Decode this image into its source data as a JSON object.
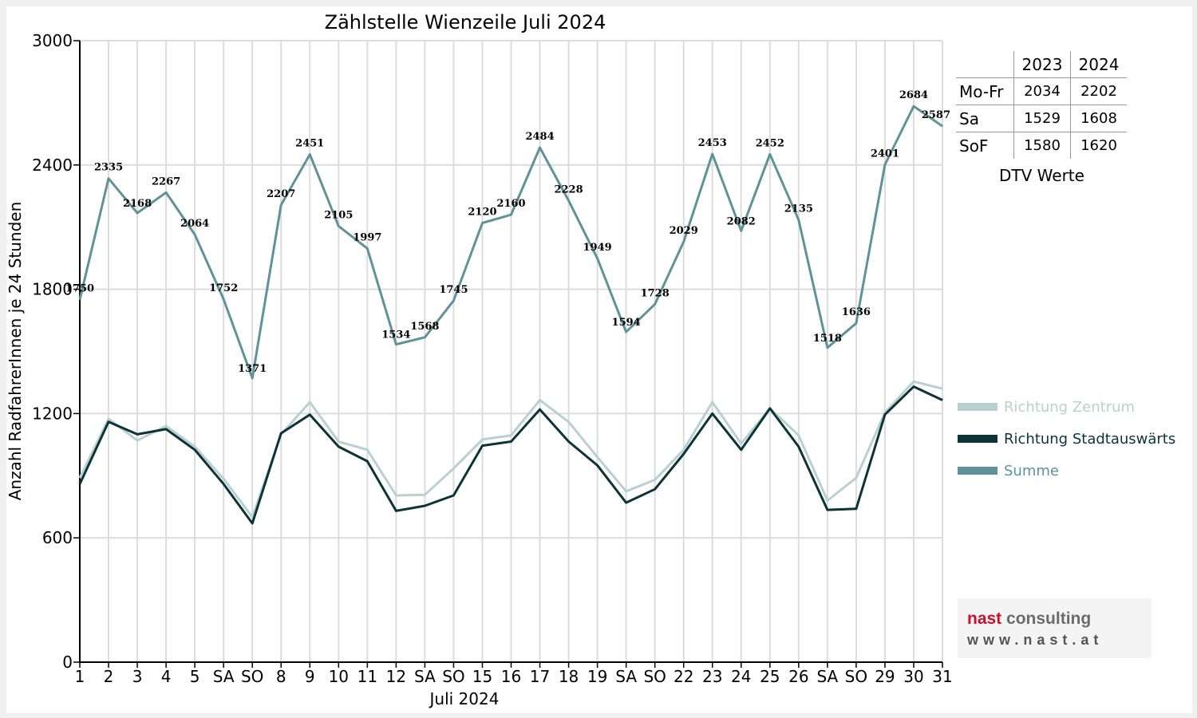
{
  "chart_data": {
    "type": "line",
    "title": "Zählstelle Wienzeile Juli 2024",
    "xlabel": "Juli 2024",
    "ylabel": "Anzahl RadfahrerInnen je 24 Stunden",
    "ylim": [
      0,
      3000
    ],
    "yticks": [
      0,
      600,
      1200,
      1800,
      2400,
      3000
    ],
    "grid": true,
    "legend_position": "right",
    "categories": [
      "1",
      "2",
      "3",
      "4",
      "5",
      "SA",
      "SO",
      "8",
      "9",
      "10",
      "11",
      "12",
      "SA",
      "SO",
      "15",
      "16",
      "17",
      "18",
      "19",
      "SA",
      "SO",
      "22",
      "23",
      "24",
      "25",
      "26",
      "SA",
      "SO",
      "29",
      "30",
      "31"
    ],
    "weekend_label_color": "#ff0000",
    "series": [
      {
        "name": "Richtung Zentrum",
        "color": "#b8d0d4",
        "values": [
          890,
          1175,
          1070,
          1140,
          1040,
          885,
          700,
          1100,
          1255,
          1065,
          1025,
          805,
          808,
          935,
          1075,
          1095,
          1265,
          1160,
          990,
          825,
          880,
          1025,
          1255,
          1055,
          1225,
          1095,
          780,
          890,
          1205,
          1355,
          1320
        ]
      },
      {
        "name": "Richtung Stadtauswärts",
        "color": "#0c3338",
        "values": [
          860,
          1160,
          1100,
          1125,
          1025,
          860,
          670,
          1105,
          1195,
          1040,
          970,
          730,
          755,
          805,
          1045,
          1065,
          1220,
          1065,
          950,
          770,
          835,
          1005,
          1200,
          1025,
          1225,
          1040,
          735,
          740,
          1195,
          1330,
          1265
        ]
      },
      {
        "name": "Summe",
        "color": "#5f9299",
        "values": [
          1750,
          2335,
          2168,
          2267,
          2064,
          1752,
          1371,
          2207,
          2451,
          2105,
          1997,
          1534,
          1568,
          1745,
          2120,
          2160,
          2484,
          2228,
          1949,
          1594,
          1728,
          2029,
          2453,
          2082,
          2452,
          2135,
          1518,
          1636,
          2401,
          2684,
          2587
        ],
        "labels": [
          "1750",
          "2335",
          "2168",
          "2267",
          "2064",
          "1752",
          "1371",
          "2207",
          "2451",
          "2105",
          "1997",
          "1534",
          "1568",
          "1745",
          "2120",
          "2160",
          "2484",
          "2228",
          "1949",
          "1594",
          "1728",
          "2029",
          "2453",
          "2082",
          "2452",
          "2135",
          "1518",
          "1636",
          "2401",
          "2684",
          "2587"
        ]
      }
    ]
  },
  "dtv_table": {
    "columns": [
      "",
      "2023",
      "2024"
    ],
    "rows": [
      {
        "label": "Mo-Fr",
        "v2023": "2034",
        "v2024": "2202"
      },
      {
        "label": "Sa",
        "v2023": "1529",
        "v2024": "1608"
      },
      {
        "label": "SoF",
        "v2023": "1580",
        "v2024": "1620"
      }
    ],
    "caption": "DTV Werte"
  },
  "logo": {
    "name_part1": "nast",
    "name_part2": " consulting",
    "url": "www.nast.at"
  }
}
